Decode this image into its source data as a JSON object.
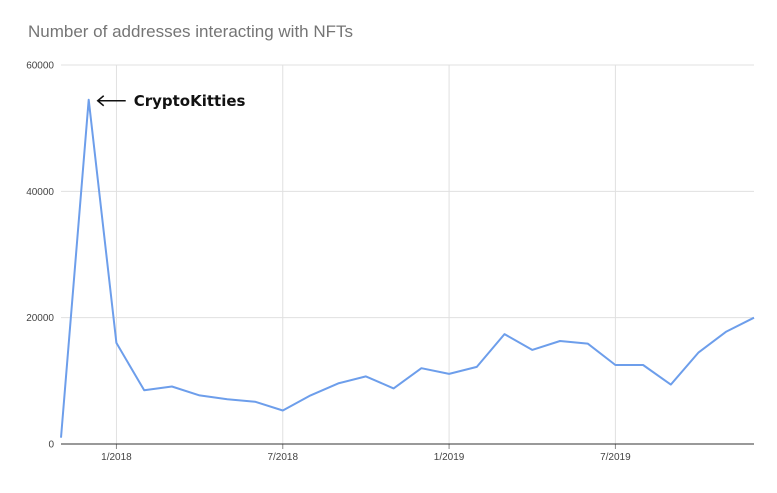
{
  "chart_data": {
    "type": "line",
    "title": "Number of addresses interacting with NFTs",
    "xlabel": "",
    "ylabel": "",
    "x": [
      "2017-11",
      "2017-12",
      "2018-01",
      "2018-02",
      "2018-03",
      "2018-04",
      "2018-05",
      "2018-06",
      "2018-07",
      "2018-08",
      "2018-09",
      "2018-10",
      "2018-11",
      "2018-12",
      "2019-01",
      "2019-02",
      "2019-03",
      "2019-04",
      "2019-05",
      "2019-06",
      "2019-07",
      "2019-08",
      "2019-09",
      "2019-10",
      "2019-11",
      "2019-12"
    ],
    "series": [
      {
        "values": [
          1000,
          54500,
          16000,
          8500,
          9100,
          7700,
          7100,
          6700,
          5300,
          7700,
          9600,
          10700,
          8800,
          12000,
          11100,
          12200,
          17400,
          14900,
          16300,
          15900,
          12500,
          12500,
          9400,
          14500,
          17800,
          20000
        ],
        "color": "#6d9eeb"
      }
    ],
    "ylim": [
      0,
      60000
    ],
    "y_ticks": [
      "0",
      "20000",
      "40000",
      "60000"
    ],
    "x_ticks": [
      {
        "label": "1/2018",
        "date": "2018-01"
      },
      {
        "label": "7/2018",
        "date": "2018-07"
      },
      {
        "label": "1/2019",
        "date": "2019-01"
      },
      {
        "label": "7/2019",
        "date": "2019-07"
      }
    ],
    "grid": true,
    "annotations": [
      {
        "text": "CryptoKitties",
        "date": "2017-12",
        "value": 54500,
        "arrow": "left"
      }
    ]
  }
}
